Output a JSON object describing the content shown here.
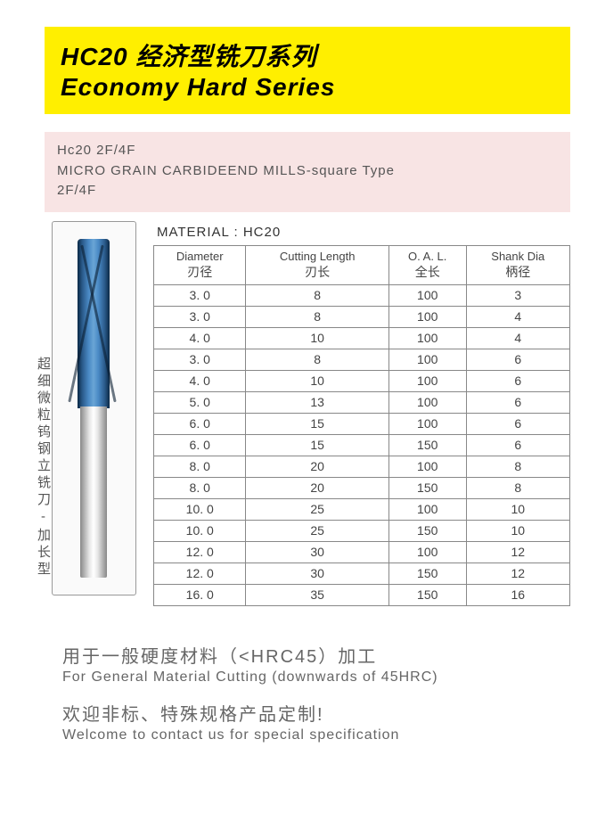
{
  "title": {
    "cn": "HC20 经济型铣刀系列",
    "en": "Economy Hard Series"
  },
  "subtitle": {
    "line1": "Hc20 2F/4F",
    "line2": "MICRO GRAIN CARBIDEEND MILLS-square Type",
    "line3": "2F/4F"
  },
  "side_label": "超细微粒钨钢立铣刀-加长型",
  "material_label": "MATERIAL : HC20",
  "table": {
    "headers": [
      {
        "en": "Diameter",
        "cn": "刃径"
      },
      {
        "en": "Cutting Length",
        "cn": "刃长"
      },
      {
        "en": "O. A. L.",
        "cn": "全长"
      },
      {
        "en": "Shank Dia",
        "cn": "柄径"
      }
    ],
    "rows": [
      [
        "3. 0",
        "8",
        "100",
        "3"
      ],
      [
        "3. 0",
        "8",
        "100",
        "4"
      ],
      [
        "4. 0",
        "10",
        "100",
        "4"
      ],
      [
        "3. 0",
        "8",
        "100",
        "6"
      ],
      [
        "4. 0",
        "10",
        "100",
        "6"
      ],
      [
        "5. 0",
        "13",
        "100",
        "6"
      ],
      [
        "6. 0",
        "15",
        "100",
        "6"
      ],
      [
        "6. 0",
        "15",
        "150",
        "6"
      ],
      [
        "8. 0",
        "20",
        "100",
        "8"
      ],
      [
        "8. 0",
        "20",
        "150",
        "8"
      ],
      [
        "10. 0",
        "25",
        "100",
        "10"
      ],
      [
        "10. 0",
        "25",
        "150",
        "10"
      ],
      [
        "12. 0",
        "30",
        "100",
        "12"
      ],
      [
        "12. 0",
        "30",
        "150",
        "12"
      ],
      [
        "16. 0",
        "35",
        "150",
        "16"
      ]
    ]
  },
  "footer": {
    "usage_cn": "用于一般硬度材料（<HRC45）加工",
    "usage_en": "For General Material Cutting (downwards of 45HRC)",
    "contact_cn": "欢迎非标、特殊规格产品定制!",
    "contact_en": "Welcome to contact us for special specification"
  },
  "colors": {
    "title_bg": "#ffef00",
    "subtitle_bg": "#f8e4e4",
    "text_dark": "#000000",
    "text_gray": "#555555",
    "text_footer": "#666666",
    "border": "#888888",
    "tool_blue_dark": "#0a2845",
    "tool_blue_light": "#6aa5d5",
    "shank_gray": "#e8e8e8"
  }
}
